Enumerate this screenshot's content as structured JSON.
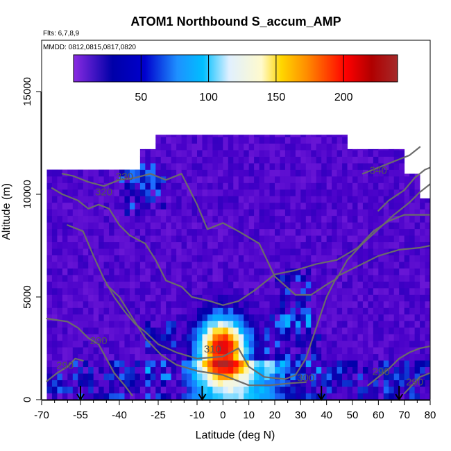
{
  "chart_data": {
    "type": "heatmap",
    "title": "ATOM1 Northbound S_accum_AMP",
    "annotations": {
      "flights": "Flts: 6,7,8,9",
      "dates": "MMDD: 0812,0815,0817,0820"
    },
    "xlabel": "Latitude (deg N)",
    "ylabel": "Altitude (m)",
    "xlim": [
      -70,
      80
    ],
    "ylim": [
      0,
      17500
    ],
    "x_ticks": [
      -70,
      -55,
      -40,
      -25,
      -10,
      0,
      10,
      20,
      30,
      40,
      50,
      60,
      70,
      80
    ],
    "y_ticks": [
      0,
      5000,
      10000,
      15000
    ],
    "grid": false,
    "colorbar": {
      "range": [
        0,
        240
      ],
      "ticks": [
        50,
        100,
        150,
        200
      ],
      "colors": [
        "#8a2be2",
        "#00008b",
        "#1e90ff",
        "#00bfff",
        "#f0f8ff",
        "#fffacd",
        "#ffd700",
        "#ff8c00",
        "#ff0000",
        "#8b0000",
        "#a52a2a"
      ]
    },
    "contour_labels": [
      {
        "label": "330",
        "x": -38,
        "y": 10700
      },
      {
        "label": "320",
        "x": -46,
        "y": 9950
      },
      {
        "label": "340",
        "x": 60,
        "y": 11000
      },
      {
        "label": "310",
        "x": -4,
        "y": 2300
      },
      {
        "label": "300",
        "x": 32,
        "y": 900
      },
      {
        "label": "290",
        "x": -48,
        "y": 2700
      },
      {
        "label": "290",
        "x": -61,
        "y": 1500
      },
      {
        "label": "290",
        "x": 61,
        "y": 1200
      },
      {
        "label": "290",
        "x": 74,
        "y": 700
      }
    ],
    "contour_levels": [
      290,
      300,
      310,
      320,
      330,
      340
    ],
    "arrows_latitude": [
      -55,
      -8,
      38,
      68
    ],
    "data_coverage": {
      "lat_range": [
        -68,
        80
      ],
      "max_altitude": 12900
    }
  }
}
